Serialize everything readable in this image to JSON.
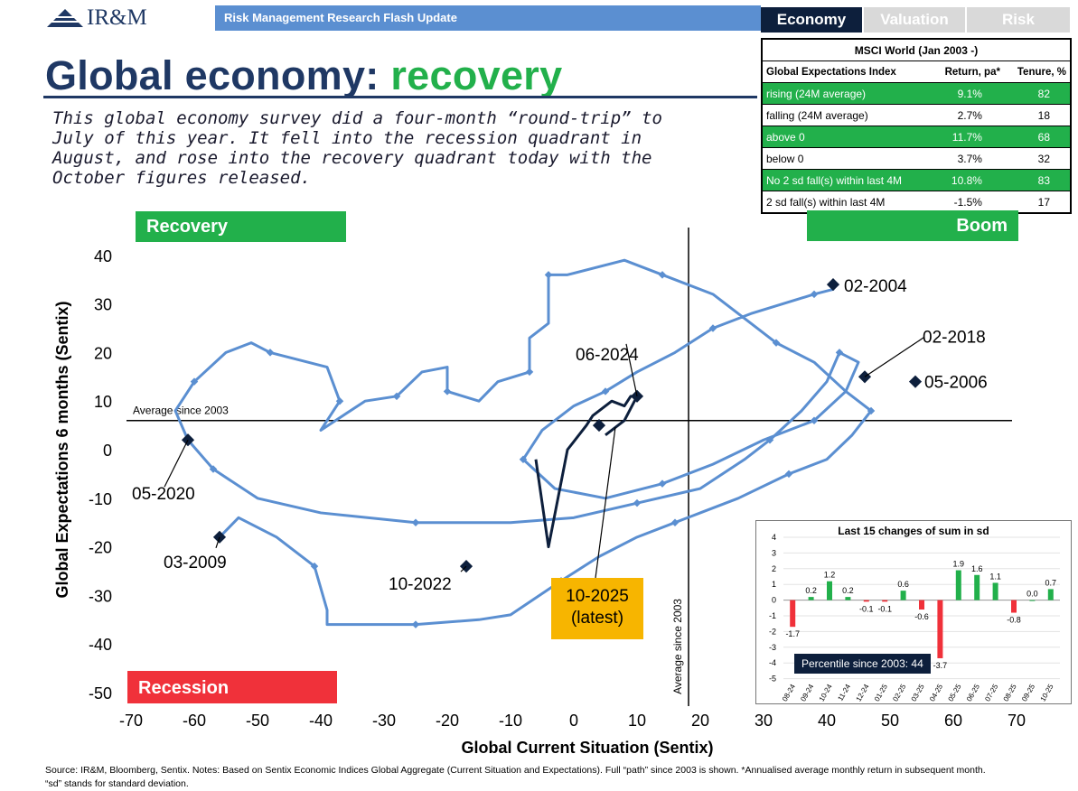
{
  "logo": {
    "text": "IR&M"
  },
  "banner": {
    "text": "Risk Management Research Flash Update"
  },
  "title": {
    "main": "Global economy:",
    "accent": "recovery"
  },
  "intro": "This global economy survey did a four-month “round-trip” to July of this year. It fell into the recession quadrant in August, and rose into the recovery quadrant today with the October figures released.",
  "tabs": [
    {
      "label": "Economy",
      "active": true
    },
    {
      "label": "Valuation",
      "active": false
    },
    {
      "label": "Risk",
      "active": false
    }
  ],
  "table": {
    "caption": "MSCI World (Jan 2003 -)",
    "headers": [
      "Global Expectations Index",
      "Return, pa*",
      "Tenure, %"
    ],
    "rows": [
      {
        "label": "rising (24M average)",
        "ret": "9.1%",
        "tenure": "82",
        "highlight": true
      },
      {
        "label": "falling (24M average)",
        "ret": "2.7%",
        "tenure": "18",
        "highlight": false
      },
      {
        "label": "above 0",
        "ret": "11.7%",
        "tenure": "68",
        "highlight": true
      },
      {
        "label": "below 0",
        "ret": "3.7%",
        "tenure": "32",
        "highlight": false
      },
      {
        "label": "No 2 sd fall(s) within last 4M",
        "ret": "10.8%",
        "tenure": "83",
        "highlight": true
      },
      {
        "label": "2 sd fall(s) within last 4M",
        "ret": "-1.5%",
        "tenure": "17",
        "highlight": false
      }
    ]
  },
  "quadrants": {
    "recovery": "Recovery",
    "boom": "Boom",
    "recession": "Recession"
  },
  "latest_box": {
    "line1": "10-2025",
    "line2": "(latest)"
  },
  "colors": {
    "navy": "#1f3864",
    "green": "#22b04b",
    "red": "#f0313a",
    "path": "#5b8fd1",
    "gold": "#f7b500",
    "dark": "#0d1f3c"
  },
  "footer": {
    "line1": "Source: IR&M, Bloomberg, Sentix. Notes: Based on Sentix Economic Indices Global Aggregate (Current Situation and Expectations). Full “path” since 2003 is shown. *Annualised average monthly return in subsequent month.",
    "line2": "“sd” stands for standard deviation."
  },
  "chart_data": [
    {
      "type": "scatter",
      "xlabel": "Global Current Situation (Sentix)",
      "ylabel": "Global Expectations 6 months (Sentix)",
      "xlim": [
        -70,
        80
      ],
      "ylim": [
        -50,
        50
      ],
      "xticks": [
        -70,
        -60,
        -50,
        -40,
        -30,
        -20,
        -10,
        0,
        10,
        20,
        30,
        40,
        50,
        60,
        70
      ],
      "yticks": [
        40,
        30,
        20,
        10,
        0,
        -10,
        -20,
        -30,
        -40,
        -50
      ],
      "reference_lines": [
        {
          "axis": "y",
          "value": 6,
          "label": "Average since 2003"
        },
        {
          "axis": "x",
          "value": 19,
          "label": "Average since 2003"
        }
      ],
      "path": [
        [
          -56,
          -18
        ],
        [
          -53,
          -14
        ],
        [
          -47,
          -18
        ],
        [
          -41,
          -24
        ],
        [
          -39,
          -33
        ],
        [
          -39,
          -36
        ],
        [
          -25,
          -36
        ],
        [
          -15,
          -35
        ],
        [
          -10,
          -34
        ],
        [
          -2,
          -27
        ],
        [
          4,
          -22
        ],
        [
          10,
          -18
        ],
        [
          16,
          -15
        ],
        [
          20,
          -13
        ],
        [
          26,
          -10
        ],
        [
          34,
          -5
        ],
        [
          40,
          -2
        ],
        [
          44,
          3
        ],
        [
          47,
          8
        ],
        [
          43,
          12
        ],
        [
          38,
          18
        ],
        [
          32,
          22
        ],
        [
          28,
          26
        ],
        [
          22,
          32
        ],
        [
          14,
          36
        ],
        [
          8,
          39
        ],
        [
          -1,
          36
        ],
        [
          -4,
          36
        ],
        [
          -4,
          26
        ],
        [
          -7,
          23
        ],
        [
          -7,
          16
        ],
        [
          -12,
          14
        ],
        [
          -15,
          10
        ],
        [
          -20,
          12
        ],
        [
          -20,
          17
        ],
        [
          -24,
          16
        ],
        [
          -28,
          11
        ],
        [
          -33,
          10
        ],
        [
          -40,
          4
        ],
        [
          -37,
          10
        ],
        [
          -39,
          17
        ],
        [
          -42,
          18
        ],
        [
          -48,
          20
        ],
        [
          -51,
          22
        ],
        [
          -55,
          20
        ],
        [
          -60,
          14
        ],
        [
          -63,
          8
        ],
        [
          -61,
          2
        ],
        [
          -57,
          -4
        ],
        [
          -50,
          -10
        ],
        [
          -40,
          -13
        ],
        [
          -25,
          -15
        ],
        [
          -10,
          -15
        ],
        [
          0,
          -14
        ],
        [
          10,
          -11
        ],
        [
          20,
          -8
        ],
        [
          27,
          -2
        ],
        [
          31,
          2
        ],
        [
          36,
          8
        ],
        [
          40,
          14
        ],
        [
          42,
          20
        ],
        [
          45,
          18
        ],
        [
          43,
          12
        ],
        [
          38,
          6
        ],
        [
          30,
          2
        ],
        [
          22,
          -3
        ],
        [
          14,
          -7
        ],
        [
          5,
          -10
        ],
        [
          -3,
          -8
        ],
        [
          -8,
          -2
        ],
        [
          -5,
          4
        ],
        [
          0,
          9
        ],
        [
          5,
          12
        ],
        [
          10,
          16
        ],
        [
          16,
          20
        ],
        [
          22,
          25
        ],
        [
          28,
          28
        ],
        [
          33,
          30
        ],
        [
          38,
          32
        ],
        [
          41,
          33
        ],
        [
          41,
          34
        ]
      ],
      "focus_path": [
        [
          -6,
          -2
        ],
        [
          -4,
          -20
        ],
        [
          -1,
          0
        ],
        [
          2,
          5
        ],
        [
          3,
          7
        ],
        [
          6,
          10
        ],
        [
          8,
          9
        ],
        [
          9,
          11
        ],
        [
          10,
          11
        ],
        [
          8,
          6
        ],
        [
          6,
          4
        ],
        [
          5,
          3
        ]
      ],
      "annotations": [
        {
          "label": "02-2004",
          "x": 41,
          "y": 34
        },
        {
          "label": "02-2018",
          "x": 46,
          "y": 15
        },
        {
          "label": "05-2006",
          "x": 54,
          "y": 14
        },
        {
          "label": "06-2024",
          "x": 10,
          "y": 11
        },
        {
          "label": "05-2020",
          "x": -61,
          "y": 2
        },
        {
          "label": "03-2009",
          "x": -56,
          "y": -18
        },
        {
          "label": "10-2022",
          "x": -17,
          "y": -24
        },
        {
          "label": "10-2025",
          "x": 4,
          "y": 5
        }
      ]
    },
    {
      "type": "bar",
      "title": "Last 15 changes of sum in sd",
      "categories": [
        "08-24",
        "09-24",
        "10-24",
        "11-24",
        "12-24",
        "01-25",
        "02-25",
        "03-25",
        "04-25",
        "05-25",
        "06-25",
        "07-25",
        "08-25",
        "09-25",
        "10-25"
      ],
      "values": [
        -1.7,
        0.2,
        1.2,
        0.2,
        -0.1,
        -0.1,
        0.6,
        -0.6,
        -3.7,
        1.9,
        1.6,
        1.1,
        -0.8,
        0.0,
        0.7
      ],
      "ylim": [
        -5,
        4
      ],
      "yticks": [
        4,
        3,
        2,
        1,
        0,
        -1,
        -2,
        -3,
        -4,
        -5
      ],
      "positive_color": "#22b04b",
      "negative_color": "#f0313a",
      "badge": "Percentile since 2003: 44"
    }
  ]
}
